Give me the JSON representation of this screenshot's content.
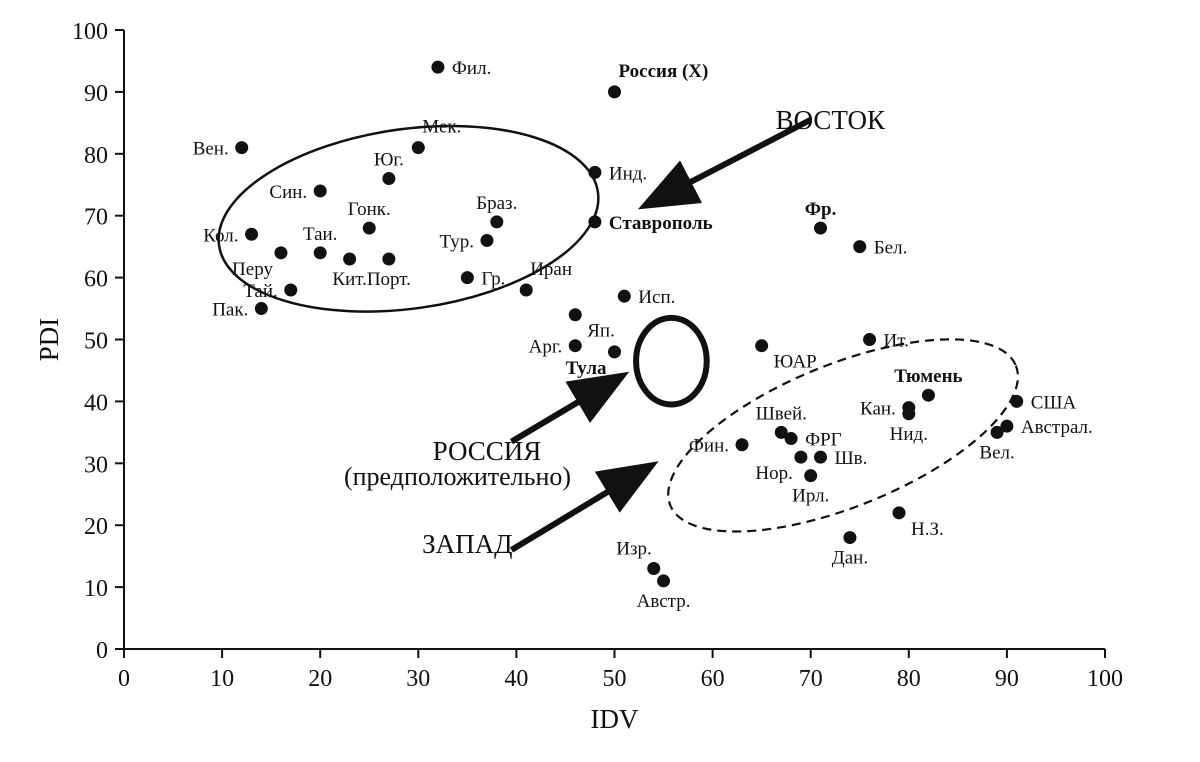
{
  "chart_data": {
    "type": "scatter",
    "xlabel": "IDV",
    "ylabel": "PDI",
    "xlim": [
      0,
      100
    ],
    "ylim": [
      0,
      100
    ],
    "xticks": [
      0,
      10,
      20,
      30,
      40,
      50,
      60,
      70,
      80,
      90,
      100
    ],
    "yticks": [
      0,
      10,
      20,
      30,
      40,
      50,
      60,
      70,
      80,
      90,
      100
    ],
    "grid": false,
    "points": [
      {
        "label": "Фил.",
        "x": 32,
        "y": 94,
        "lpos": "right"
      },
      {
        "label": "Россия (X)",
        "x": 50,
        "y": 90,
        "lpos": "top-right",
        "bold": true
      },
      {
        "label": "Вен.",
        "x": 12,
        "y": 81,
        "lpos": "left"
      },
      {
        "label": "Мек.",
        "x": 30,
        "y": 81,
        "lpos": "top-right"
      },
      {
        "label": "Юг.",
        "x": 27,
        "y": 76,
        "lpos": "top"
      },
      {
        "label": "Инд.",
        "x": 48,
        "y": 77,
        "lpos": "right"
      },
      {
        "label": "Син.",
        "x": 20,
        "y": 74,
        "lpos": "left"
      },
      {
        "label": "Браз.",
        "x": 38,
        "y": 69,
        "lpos": "top"
      },
      {
        "label": "Ставрополь",
        "x": 48,
        "y": 69,
        "lpos": "right",
        "bold": true
      },
      {
        "label": "Гонк.",
        "x": 25,
        "y": 68,
        "lpos": "top"
      },
      {
        "label": "Кол.",
        "x": 13,
        "y": 67,
        "lpos": "left"
      },
      {
        "label": "Таи.",
        "x": 20,
        "y": 64,
        "lpos": "top"
      },
      {
        "label": "Тур.",
        "x": 37,
        "y": 66,
        "lpos": "left"
      },
      {
        "label": "Перу",
        "x": 16,
        "y": 64,
        "lpos": "bottom-left"
      },
      {
        "label": "Кит.",
        "x": 23,
        "y": 63,
        "lpos": "bottom"
      },
      {
        "label": "Порт.",
        "x": 27,
        "y": 63,
        "lpos": "bottom"
      },
      {
        "label": "Гр.",
        "x": 35,
        "y": 60,
        "lpos": "right"
      },
      {
        "label": "Иран",
        "x": 41,
        "y": 58,
        "lpos": "top-right"
      },
      {
        "label": "Тай.",
        "x": 17,
        "y": 58,
        "lpos": "left"
      },
      {
        "label": "Пак.",
        "x": 14,
        "y": 55,
        "lpos": "left"
      },
      {
        "label": "Исп.",
        "x": 51,
        "y": 57,
        "lpos": "right"
      },
      {
        "label": "Яп.",
        "x": 46,
        "y": 54,
        "lpos": "bottom-right"
      },
      {
        "label": "Арг.",
        "x": 46,
        "y": 49,
        "lpos": "left"
      },
      {
        "label": "Тула",
        "x": 50,
        "y": 48,
        "lpos": "bottom-left",
        "bold": true
      },
      {
        "label": "ЮАР",
        "x": 65,
        "y": 49,
        "lpos": "bottom-right"
      },
      {
        "label": "Ит.",
        "x": 76,
        "y": 50,
        "lpos": "right"
      },
      {
        "label": "Фр.",
        "x": 71,
        "y": 68,
        "lpos": "top",
        "bold": true
      },
      {
        "label": "Бел.",
        "x": 75,
        "y": 65,
        "lpos": "right"
      },
      {
        "label": "Тюмень",
        "x": 82,
        "y": 41,
        "lpos": "top",
        "bold": true
      },
      {
        "label": "Кан.",
        "x": 80,
        "y": 39,
        "lpos": "left"
      },
      {
        "label": "Нид.",
        "x": 80,
        "y": 38,
        "lpos": "bottom"
      },
      {
        "label": "США",
        "x": 91,
        "y": 40,
        "lpos": "right"
      },
      {
        "label": "Австрал.",
        "x": 90,
        "y": 36,
        "lpos": "right"
      },
      {
        "label": "Вел.",
        "x": 89,
        "y": 35,
        "lpos": "bottom"
      },
      {
        "label": "Швей.",
        "x": 67,
        "y": 35,
        "lpos": "top"
      },
      {
        "label": "ФРГ",
        "x": 68,
        "y": 34,
        "lpos": "right"
      },
      {
        "label": "Фин.",
        "x": 63,
        "y": 33,
        "lpos": "left"
      },
      {
        "label": "Нор.",
        "x": 69,
        "y": 31,
        "lpos": "bottom-left"
      },
      {
        "label": "Шв.",
        "x": 71,
        "y": 31,
        "lpos": "right"
      },
      {
        "label": "Ирл.",
        "x": 70,
        "y": 28,
        "lpos": "bottom"
      },
      {
        "label": "Н.З.",
        "x": 79,
        "y": 22,
        "lpos": "bottom-right"
      },
      {
        "label": "Дан.",
        "x": 74,
        "y": 18,
        "lpos": "bottom"
      },
      {
        "label": "Изр.",
        "x": 54,
        "y": 13,
        "lpos": "top-left"
      },
      {
        "label": "Австр.",
        "x": 55,
        "y": 11,
        "lpos": "bottom"
      }
    ],
    "annotations": [
      {
        "text": "ВОСТОК",
        "at": [
          72,
          84
        ]
      },
      {
        "text": "РОССИЯ",
        "at": [
          37,
          30.5
        ]
      },
      {
        "text": "(предположительно)",
        "at": [
          34,
          26.5
        ]
      },
      {
        "text": "ЗАПАД",
        "at": [
          35,
          15.5
        ]
      }
    ],
    "regions": [
      {
        "name": "east",
        "cx": 29,
        "cy": 69.5,
        "rx": 19.5,
        "ry": 14.5,
        "angle": -8,
        "style": "solid",
        "width": 2.5
      },
      {
        "name": "russia",
        "cx": 55.8,
        "cy": 46.5,
        "rx": 3.6,
        "ry": 7,
        "angle": 0,
        "style": "solid",
        "width": 6
      },
      {
        "name": "west",
        "cx": 73.3,
        "cy": 34.5,
        "rx": 19,
        "ry": 11.5,
        "angle": -22,
        "style": "dashed",
        "width": 2.2
      }
    ],
    "arrows": [
      {
        "from": [
          70,
          85.5
        ],
        "to": [
          56,
          74
        ]
      },
      {
        "from": [
          39.5,
          33.5
        ],
        "to": [
          48,
          41.5
        ]
      },
      {
        "from": [
          39.5,
          16
        ],
        "to": [
          51,
          27
        ]
      }
    ]
  }
}
